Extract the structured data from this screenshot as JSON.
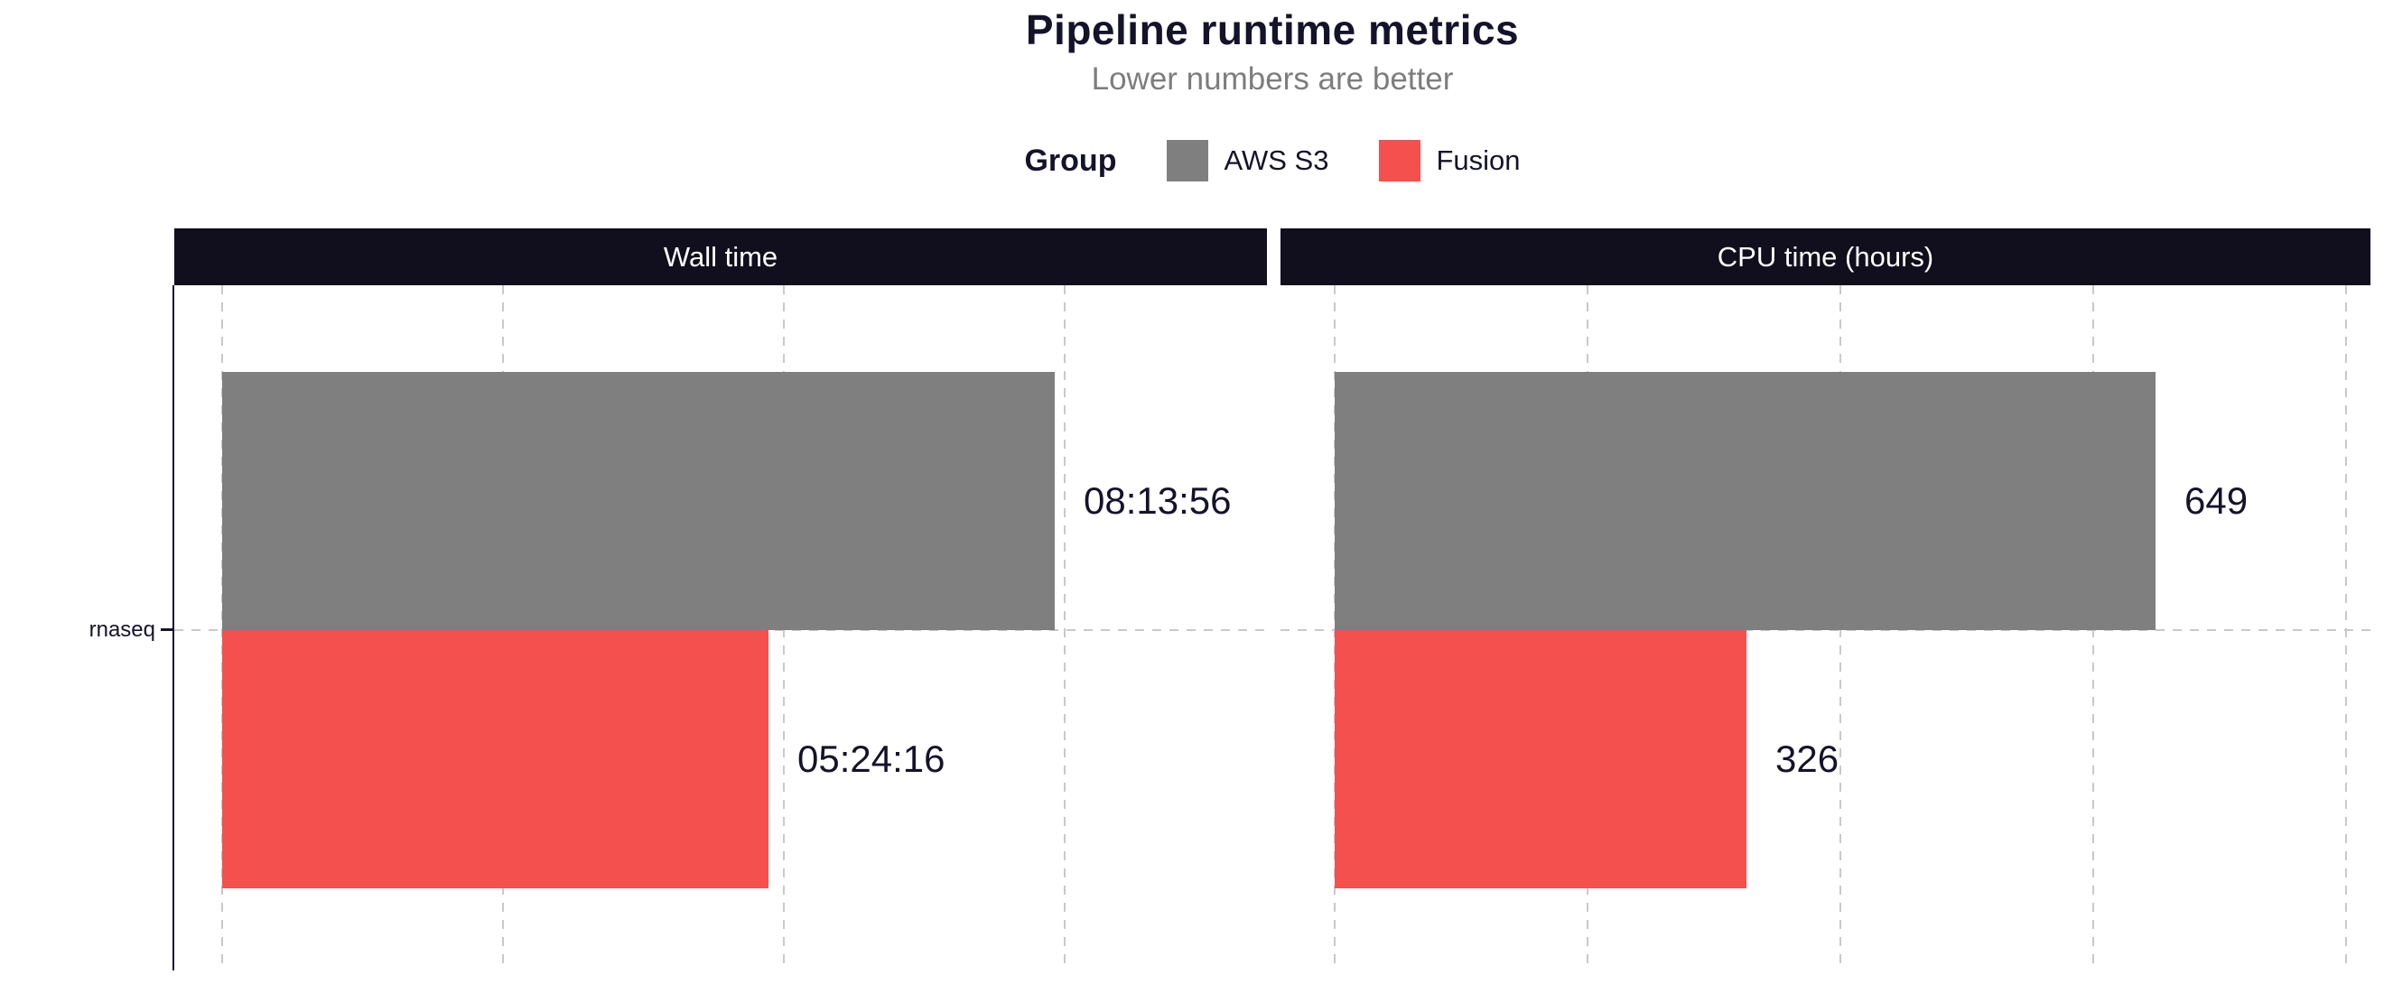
{
  "chart_data": {
    "type": "bar",
    "orientation": "horizontal",
    "title": "Pipeline runtime metrics",
    "subtitle": "Lower numbers are better",
    "legend": {
      "title": "Group",
      "position": "top"
    },
    "y_categories": [
      "rnaseq"
    ],
    "grid": "dashed",
    "series": [
      {
        "name": "AWS S3",
        "color": "#7f7f7f"
      },
      {
        "name": "Fusion",
        "color": "#f4504e"
      }
    ],
    "panels": [
      {
        "strip_label": "Wall time",
        "unit": "seconds",
        "axis_breaks": [
          0,
          10000,
          20000,
          30000
        ],
        "values": [
          {
            "series": "AWS S3",
            "category": "rnaseq",
            "value": 29636,
            "label": "08:13:56"
          },
          {
            "series": "Fusion",
            "category": "rnaseq",
            "value": 19456,
            "label": "05:24:16"
          }
        ]
      },
      {
        "strip_label": "CPU time (hours)",
        "unit": "hours",
        "axis_breaks": [
          0,
          200,
          400,
          600,
          800
        ],
        "values": [
          {
            "series": "AWS S3",
            "category": "rnaseq",
            "value": 649,
            "label": "649"
          },
          {
            "series": "Fusion",
            "category": "rnaseq",
            "value": 326,
            "label": "326"
          }
        ]
      }
    ],
    "colors": {
      "strip_background": "#110e1e",
      "strip_text": "#ffffff",
      "text_dark": "#15132a",
      "subtitle_text": "#7d7d7d",
      "gridline": "#c9c9c9",
      "axis": "#15132a"
    }
  }
}
